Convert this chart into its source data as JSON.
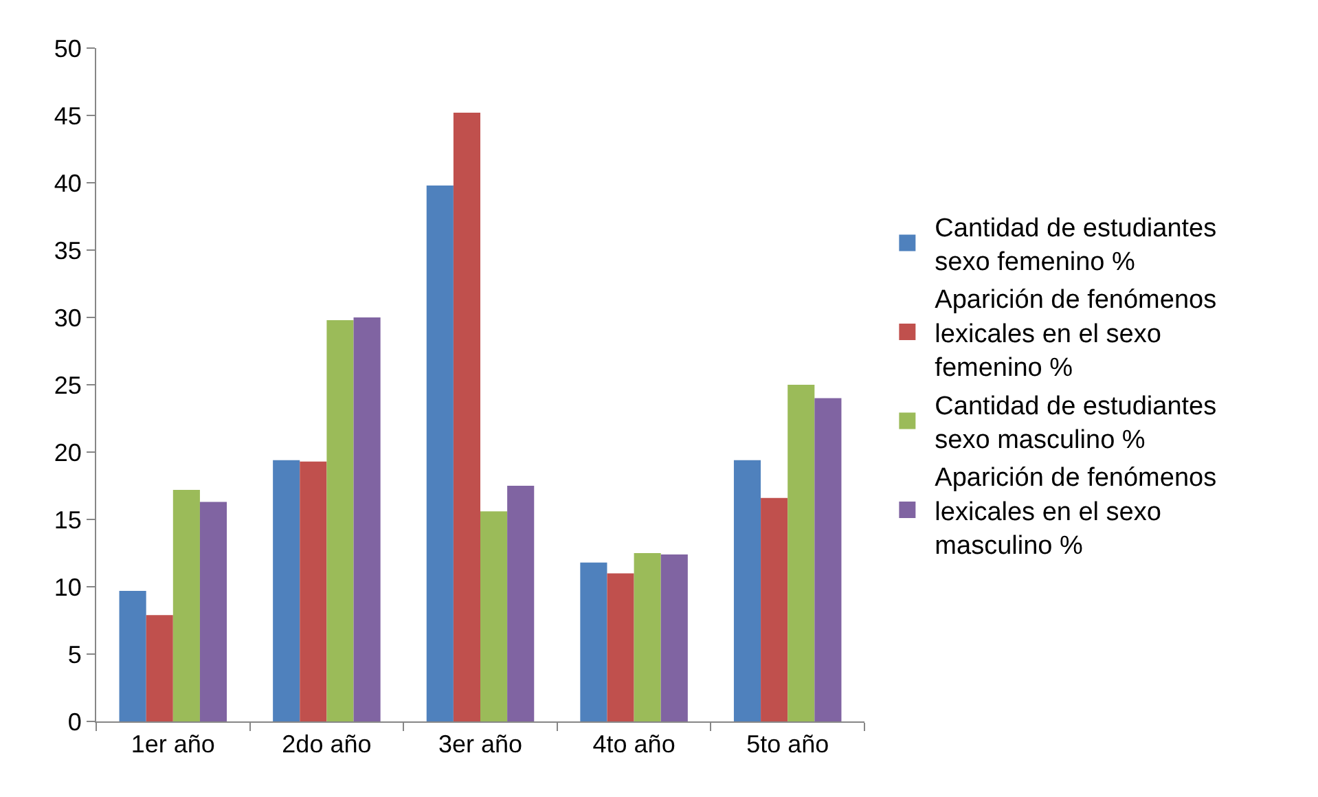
{
  "chart_data": {
    "type": "bar",
    "categories": [
      "1er año",
      "2do año",
      "3er año",
      "4to año",
      "5to año"
    ],
    "series": [
      {
        "name": "Cantidad de estudiantes sexo femenino %",
        "color": "#4f81bd",
        "values": [
          9.7,
          19.4,
          39.8,
          11.8,
          19.4
        ]
      },
      {
        "name": "Aparición de fenómenos lexicales en el sexo femenino %",
        "color": "#c0504d",
        "values": [
          7.9,
          19.3,
          45.2,
          11.0,
          16.6
        ]
      },
      {
        "name": "Cantidad de estudiantes sexo masculino %",
        "color": "#9bbb59",
        "values": [
          17.2,
          29.8,
          15.6,
          12.5,
          25.0
        ]
      },
      {
        "name": "Aparición de fenómenos lexicales en el sexo masculino %",
        "color": "#8064a2",
        "values": [
          16.3,
          30.0,
          17.5,
          12.4,
          24.0
        ]
      }
    ],
    "ylim": [
      0,
      50
    ],
    "yticks": [
      0,
      5,
      10,
      15,
      20,
      25,
      30,
      35,
      40,
      45,
      50
    ],
    "legend": "right"
  }
}
